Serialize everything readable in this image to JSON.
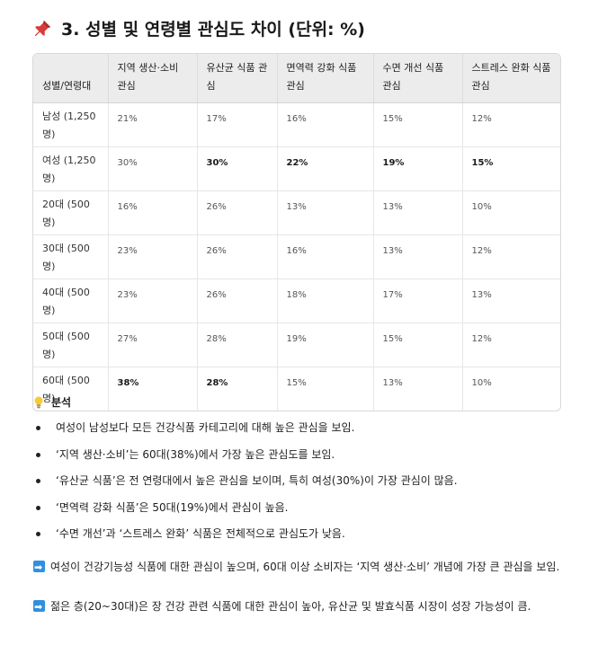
{
  "title": {
    "icon": "pushpin-icon",
    "text": "3. 성별 및 연령별 관심도 차이 (단위: %)"
  },
  "table": {
    "headers": [
      "성별/연령대",
      "지역 생산·소비 관심",
      "유산균 식품 관심",
      "면역력 강화 식품 관심",
      "수면 개선 식품 관심",
      "스트레스 완화 식품 관심"
    ],
    "rows": [
      {
        "label": "남성 (1,250명)",
        "values": [
          "21%",
          "17%",
          "16%",
          "15%",
          "12%"
        ],
        "bold": [
          false,
          false,
          false,
          false,
          false
        ]
      },
      {
        "label": "여성 (1,250명)",
        "values": [
          "30%",
          "30%",
          "22%",
          "19%",
          "15%"
        ],
        "bold": [
          false,
          true,
          true,
          true,
          true
        ]
      },
      {
        "label": "20대 (500명)",
        "values": [
          "16%",
          "26%",
          "13%",
          "13%",
          "10%"
        ],
        "bold": [
          false,
          false,
          false,
          false,
          false
        ]
      },
      {
        "label": "30대 (500명)",
        "values": [
          "23%",
          "26%",
          "16%",
          "13%",
          "12%"
        ],
        "bold": [
          false,
          false,
          false,
          false,
          false
        ]
      },
      {
        "label": "40대 (500명)",
        "values": [
          "23%",
          "26%",
          "18%",
          "17%",
          "13%"
        ],
        "bold": [
          false,
          false,
          false,
          false,
          false
        ]
      },
      {
        "label": "50대 (500명)",
        "values": [
          "27%",
          "28%",
          "19%",
          "15%",
          "12%"
        ],
        "bold": [
          false,
          false,
          false,
          false,
          false
        ]
      },
      {
        "label": "60대 (500명)",
        "values": [
          "38%",
          "28%",
          "15%",
          "13%",
          "10%"
        ],
        "bold": [
          true,
          true,
          false,
          false,
          false
        ]
      }
    ]
  },
  "analysis": {
    "icon": "lightbulb-icon",
    "heading": "분석",
    "points": [
      "여성이 남성보다 모든 건강식품 카테고리에 대해 높은 관심을 보임.",
      "‘지역 생산·소비’는 60대(38%)에서 가장 높은 관심도를 보임.",
      "‘유산균 식품’은 전 연령대에서 높은 관심을 보이며, 특히 여성(30%)이 가장 관심이 많음.",
      "‘면역력 강화 식품’은 50대(19%)에서 관심이 높음.",
      "‘수면 개선’과 ‘스트레스 완화’ 식품은 전체적으로 관심도가 낮음."
    ]
  },
  "conclusions": [
    {
      "icon": "right-arrow-icon",
      "text": "여성이 건강기능성 식품에 대한 관심이 높으며, 60대 이상 소비자는 ‘지역 생산·소비’ 개념에 가장 큰 관심을 보임."
    },
    {
      "icon": "right-arrow-icon",
      "text": "젊은 층(20~30대)은 장 건강 관련 식품에 대한 관심이 높아, 유산균 및 발효식품 시장이 성장 가능성이 큼."
    }
  ],
  "colors": {
    "header_bg": "#ececec",
    "arrow_box": "#2f8fe0",
    "pin_red": "#d93a3a"
  }
}
